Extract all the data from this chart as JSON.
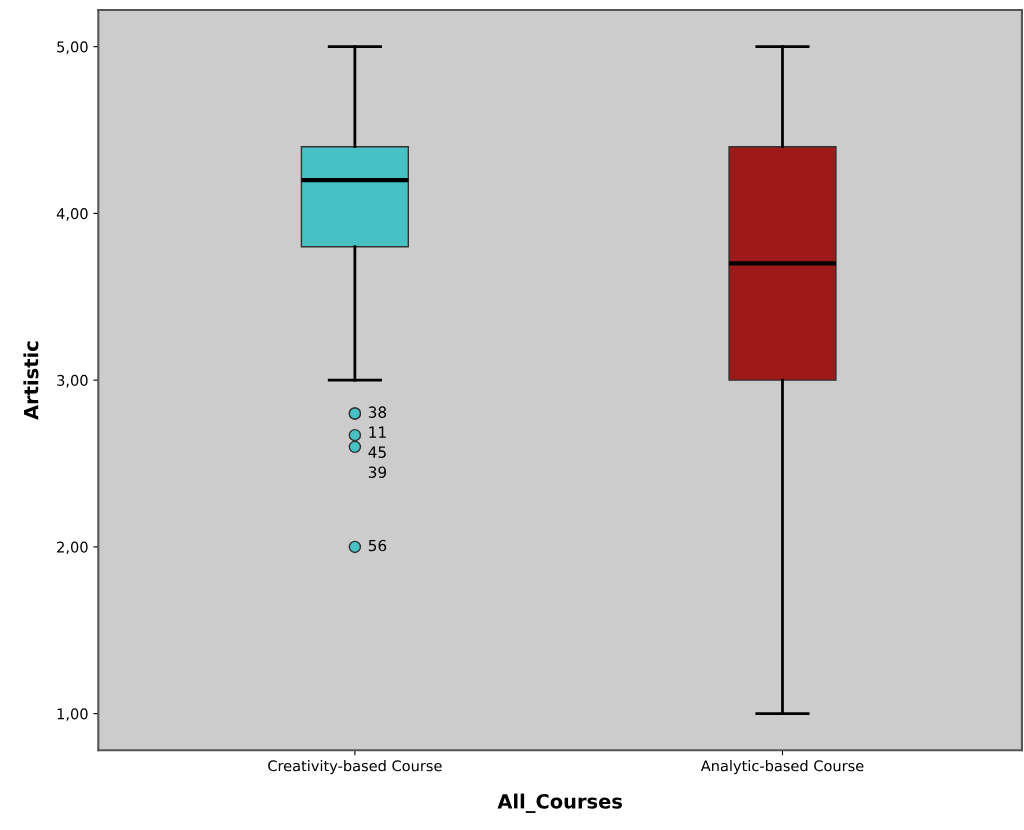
{
  "chart_data": {
    "type": "box",
    "xlabel": "All_Courses",
    "ylabel": "Artistic",
    "categories": [
      "Creativity-based Course",
      "Analytic-based Course"
    ],
    "colors": [
      "#48c1c4",
      "#9e1a1a"
    ],
    "boxes": [
      {
        "low": 3.0,
        "q1": 3.8,
        "median": 4.2,
        "q3": 4.4,
        "high": 5.0,
        "outliers": [
          2.8,
          2.8,
          2.67,
          2.6,
          2.0
        ]
      },
      {
        "low": 1.0,
        "q1": 3.0,
        "median": 3.7,
        "q3": 4.4,
        "high": 5.0
      }
    ],
    "annotations": [
      "38",
      "11",
      "45",
      "39",
      "56"
    ],
    "ylim": [
      0.78,
      5.22
    ],
    "yticks": [
      {
        "value": 1,
        "label": "1,00"
      },
      {
        "value": 2,
        "label": "2,00"
      },
      {
        "value": 3,
        "label": "3,00"
      },
      {
        "value": 4,
        "label": "4,00"
      },
      {
        "value": 5,
        "label": "5,00"
      }
    ],
    "marker": "circle",
    "grid": false,
    "legend": false
  }
}
